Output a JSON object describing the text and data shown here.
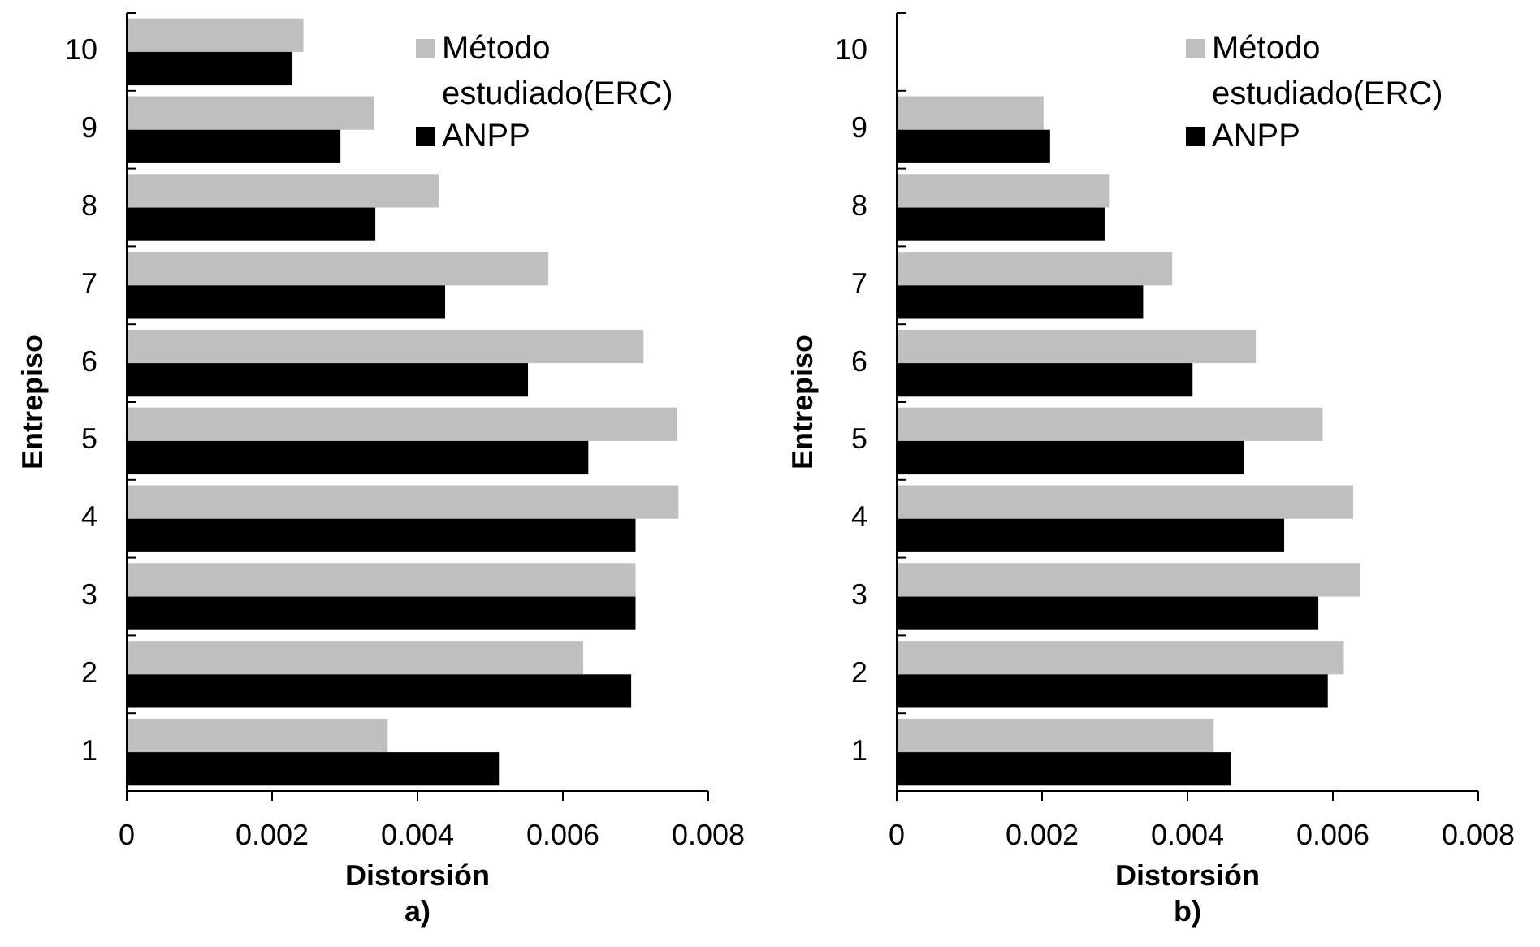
{
  "chart_data": [
    {
      "type": "bar",
      "orientation": "horizontal",
      "categories": [
        "10",
        "9",
        "8",
        "7",
        "6",
        "5",
        "4",
        "3",
        "2",
        "1"
      ],
      "xlabel": "Distorsión",
      "ylabel": "Entrepiso",
      "annotations": [
        "a)"
      ],
      "xlim": [
        0,
        0.008
      ],
      "xticks": [
        0,
        0.002,
        0.004,
        0.006,
        0.008
      ],
      "legend": "top right",
      "grid": false,
      "series": [
        {
          "name": "Método estudiado(ERC)",
          "color": "#bfbfbf",
          "values": [
            0.00243,
            0.0034,
            0.00429,
            0.0058,
            0.00711,
            0.00757,
            0.00759,
            0.007,
            0.00628,
            0.00359
          ]
        },
        {
          "name": "ANPP",
          "color": "#000000",
          "values": [
            0.00228,
            0.00294,
            0.00342,
            0.00438,
            0.00552,
            0.00635,
            0.007,
            0.007,
            0.00694,
            0.00512
          ]
        }
      ]
    },
    {
      "type": "bar",
      "orientation": "horizontal",
      "categories": [
        "10",
        "9",
        "8",
        "7",
        "6",
        "5",
        "4",
        "3",
        "2",
        "1"
      ],
      "xlabel": "Distorsión",
      "ylabel": "Entrepiso",
      "annotations": [
        "b)"
      ],
      "xlim": [
        0,
        0.008
      ],
      "xticks": [
        0,
        0.002,
        0.004,
        0.006,
        0.008
      ],
      "legend": "top right",
      "grid": false,
      "series": [
        {
          "name": "Método estudiado(ERC)",
          "color": "#bfbfbf",
          "values": [
            null,
            0.00202,
            0.00292,
            0.00379,
            0.00494,
            0.00586,
            0.00628,
            0.00637,
            0.00615,
            0.00436
          ]
        },
        {
          "name": "ANPP",
          "color": "#000000",
          "values": [
            null,
            0.00211,
            0.00286,
            0.00339,
            0.00407,
            0.00478,
            0.00533,
            0.0058,
            0.00593,
            0.0046
          ]
        }
      ]
    }
  ]
}
